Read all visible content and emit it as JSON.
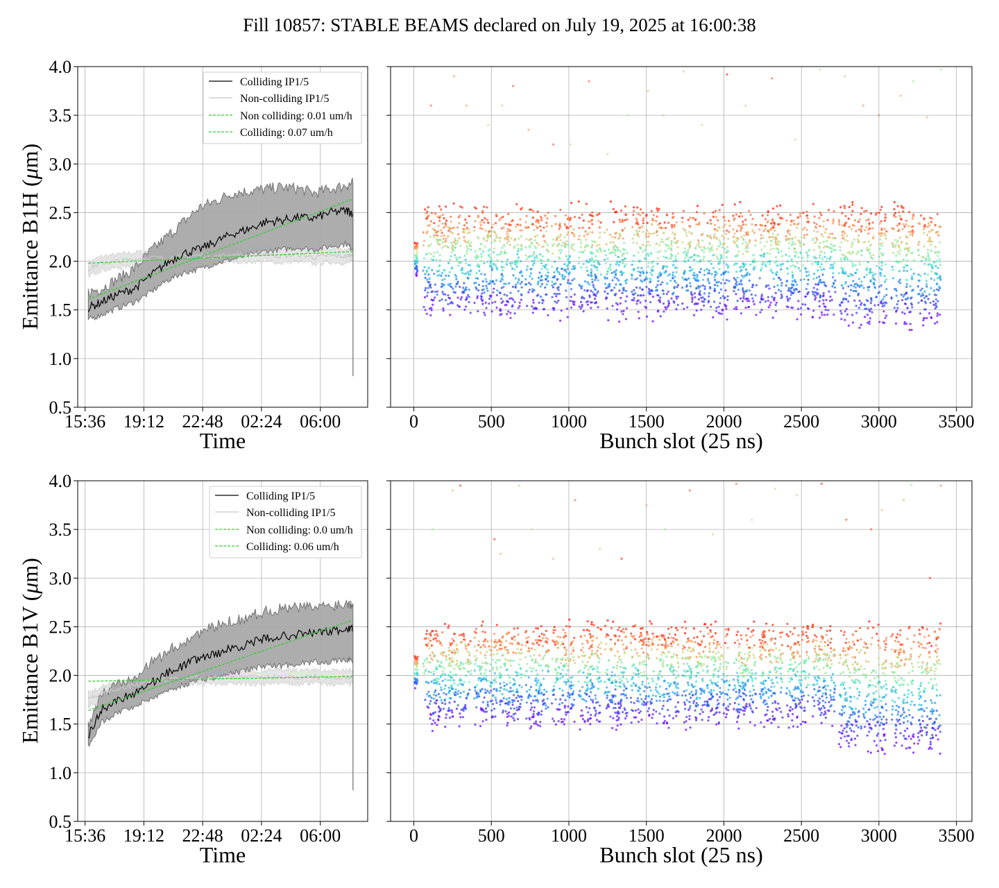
{
  "figure": {
    "title": "Fill 10857: STABLE BEAMS declared on July 19, 2025 at 16:00:38"
  },
  "colors": {
    "colliding": "#000000",
    "non_colliding": "#c8c8c8",
    "band": "#a9a9a9",
    "fit": "#33cc33",
    "grid": "#b0b0b0"
  },
  "chart_data": [
    {
      "id": "b1h_time",
      "type": "line",
      "xlabel": "Time",
      "ylabel_prefix": "Emittance B1H (",
      "ylabel_unit": "m)",
      "xticks": [
        "15:36",
        "19:12",
        "22:48",
        "02:24",
        "06:00"
      ],
      "ylim": [
        0.5,
        4.0
      ],
      "yticks": [
        "0.5",
        "1.0",
        "1.5",
        "2.0",
        "2.5",
        "3.0",
        "3.5",
        "4.0"
      ],
      "x_hours_since_15_36": [
        0.2,
        1.0,
        2.0,
        3.0,
        4.0,
        5.0,
        6.0,
        7.0,
        8.0,
        9.0,
        10.0,
        11.0,
        12.0,
        13.0,
        14.0,
        15.0,
        16.0,
        16.4
      ],
      "legend": [
        "Colliding IP1/5",
        "Non-colliding IP1/5",
        "Non colliding: 0.01 um/h",
        "Colliding: 0.07 um/h"
      ],
      "series": [
        {
          "name": "Colliding IP1/5",
          "values": [
            1.52,
            1.58,
            1.66,
            1.72,
            1.85,
            1.98,
            2.08,
            2.12,
            2.2,
            2.28,
            2.33,
            2.4,
            2.42,
            2.45,
            2.44,
            2.5,
            2.52,
            2.5
          ]
        },
        {
          "name": "Colliding band lower",
          "values": [
            1.4,
            1.45,
            1.52,
            1.58,
            1.68,
            1.8,
            1.88,
            1.92,
            1.98,
            2.02,
            2.06,
            2.1,
            2.12,
            2.14,
            2.12,
            2.15,
            2.18,
            2.12
          ]
        },
        {
          "name": "Colliding band upper",
          "values": [
            1.68,
            1.72,
            1.82,
            1.92,
            2.1,
            2.25,
            2.4,
            2.55,
            2.62,
            2.7,
            2.72,
            2.74,
            2.76,
            2.75,
            2.7,
            2.74,
            2.78,
            2.8
          ]
        },
        {
          "name": "Non-colliding IP1/5",
          "values": [
            1.92,
            1.98,
            2.0,
            2.02,
            2.04,
            2.03,
            2.05,
            2.06,
            2.05,
            2.07,
            2.06,
            2.08,
            2.05,
            2.07,
            2.04,
            2.06,
            2.05,
            2.07
          ]
        },
        {
          "name": "Non colliding: 0.01 um/h",
          "fit": [
            1.98,
            2.1
          ]
        },
        {
          "name": "Colliding: 0.07 um/h",
          "fit": [
            1.61,
            2.64
          ]
        }
      ]
    },
    {
      "id": "b1h_bunch",
      "type": "scatter",
      "xlabel": "Bunch slot (25 ns)",
      "xticks": [
        "0",
        "500",
        "1000",
        "1500",
        "2000",
        "2500",
        "3000",
        "3500"
      ],
      "xlim": [
        -150,
        3600
      ],
      "ylim": [
        0.5,
        4.0
      ],
      "trains_start": [
        60,
        220,
        390,
        550,
        720,
        890,
        1060,
        1230,
        1400,
        1560,
        1730,
        1890,
        2060,
        2230,
        2400,
        2570,
        2740,
        2900,
        3080,
        3250
      ],
      "train_length": 150,
      "band_low": 1.5,
      "band_high": 2.5,
      "low_drift_after_2700": -0.1,
      "outliers": {
        "x": [
          110,
          260,
          340,
          480,
          570,
          640,
          740,
          900,
          1010,
          1130,
          1250,
          1380,
          1510,
          1610,
          1740,
          1860,
          2020,
          2140,
          2310,
          2460,
          2620,
          2780,
          2900,
          3000,
          3140,
          3220,
          3310,
          3400
        ],
        "y": [
          3.6,
          3.9,
          3.6,
          3.4,
          3.6,
          3.8,
          3.35,
          3.2,
          3.2,
          3.85,
          3.1,
          3.5,
          3.75,
          3.5,
          3.95,
          3.4,
          3.92,
          3.6,
          3.88,
          3.25,
          3.97,
          3.9,
          3.6,
          3.5,
          3.7,
          3.85,
          3.48,
          3.97
        ]
      }
    },
    {
      "id": "b1v_time",
      "type": "line",
      "xlabel": "Time",
      "ylabel_prefix": "Emittance B1V (",
      "ylabel_unit": "m)",
      "xticks": [
        "15:36",
        "19:12",
        "22:48",
        "02:24",
        "06:00"
      ],
      "ylim": [
        0.5,
        4.0
      ],
      "yticks": [
        "0.5",
        "1.0",
        "1.5",
        "2.0",
        "2.5",
        "3.0",
        "3.5",
        "4.0"
      ],
      "x_hours_since_15_36": [
        0.2,
        1.0,
        2.0,
        3.0,
        4.0,
        5.0,
        6.0,
        7.0,
        8.0,
        9.0,
        10.0,
        11.0,
        12.0,
        13.0,
        14.0,
        15.0,
        16.0,
        16.4
      ],
      "legend": [
        "Colliding IP1/5",
        "Non-colliding IP1/5",
        "Non colliding: 0.0 um/h",
        "Colliding: 0.06 um/h"
      ],
      "series": [
        {
          "name": "Colliding IP1/5",
          "values": [
            1.38,
            1.65,
            1.75,
            1.82,
            1.92,
            2.02,
            2.1,
            2.18,
            2.22,
            2.28,
            2.32,
            2.38,
            2.4,
            2.42,
            2.44,
            2.45,
            2.47,
            2.48
          ]
        },
        {
          "name": "Colliding band lower",
          "values": [
            1.28,
            1.52,
            1.62,
            1.68,
            1.76,
            1.84,
            1.9,
            1.96,
            1.98,
            2.02,
            2.06,
            2.1,
            2.1,
            2.12,
            2.14,
            2.14,
            2.16,
            2.16
          ]
        },
        {
          "name": "Colliding band upper",
          "values": [
            1.5,
            1.8,
            1.92,
            2.0,
            2.12,
            2.24,
            2.34,
            2.44,
            2.5,
            2.56,
            2.6,
            2.66,
            2.68,
            2.7,
            2.7,
            2.72,
            2.74,
            2.74
          ]
        },
        {
          "name": "Non-colliding IP1/5",
          "values": [
            1.75,
            1.82,
            1.86,
            1.9,
            1.94,
            1.96,
            1.97,
            1.98,
            1.98,
            1.99,
            1.98,
            1.98,
            1.99,
            1.98,
            1.99,
            1.98,
            1.98,
            1.99
          ]
        },
        {
          "name": "Non colliding: 0.0 um/h",
          "fit": [
            1.94,
            1.99
          ]
        },
        {
          "name": "Colliding: 0.06 um/h",
          "fit": [
            1.64,
            2.57
          ]
        }
      ]
    },
    {
      "id": "b1v_bunch",
      "type": "scatter",
      "xlabel": "Bunch slot (25 ns)",
      "xticks": [
        "0",
        "500",
        "1000",
        "1500",
        "2000",
        "2500",
        "3000",
        "3500"
      ],
      "xlim": [
        -150,
        3600
      ],
      "ylim": [
        0.5,
        4.0
      ],
      "trains_start": [
        60,
        220,
        390,
        550,
        720,
        890,
        1060,
        1230,
        1400,
        1560,
        1730,
        1890,
        2060,
        2230,
        2400,
        2570,
        2740,
        2900,
        3080,
        3250
      ],
      "train_length": 150,
      "band_low": 1.55,
      "band_high": 2.45,
      "low_drift_after_2700": -0.25,
      "outliers": {
        "x": [
          120,
          250,
          300,
          520,
          560,
          680,
          760,
          900,
          1040,
          1200,
          1340,
          1500,
          1620,
          1780,
          1930,
          2080,
          2180,
          2330,
          2470,
          2630,
          2790,
          2950,
          3020,
          3160,
          3210,
          3330,
          3400
        ],
        "y": [
          3.5,
          3.9,
          3.95,
          3.4,
          3.25,
          3.95,
          3.5,
          3.2,
          3.8,
          3.3,
          3.2,
          3.75,
          3.5,
          3.9,
          3.45,
          3.97,
          3.6,
          3.92,
          3.85,
          3.97,
          3.6,
          3.5,
          3.7,
          3.8,
          3.96,
          3.0,
          3.95
        ]
      }
    }
  ]
}
